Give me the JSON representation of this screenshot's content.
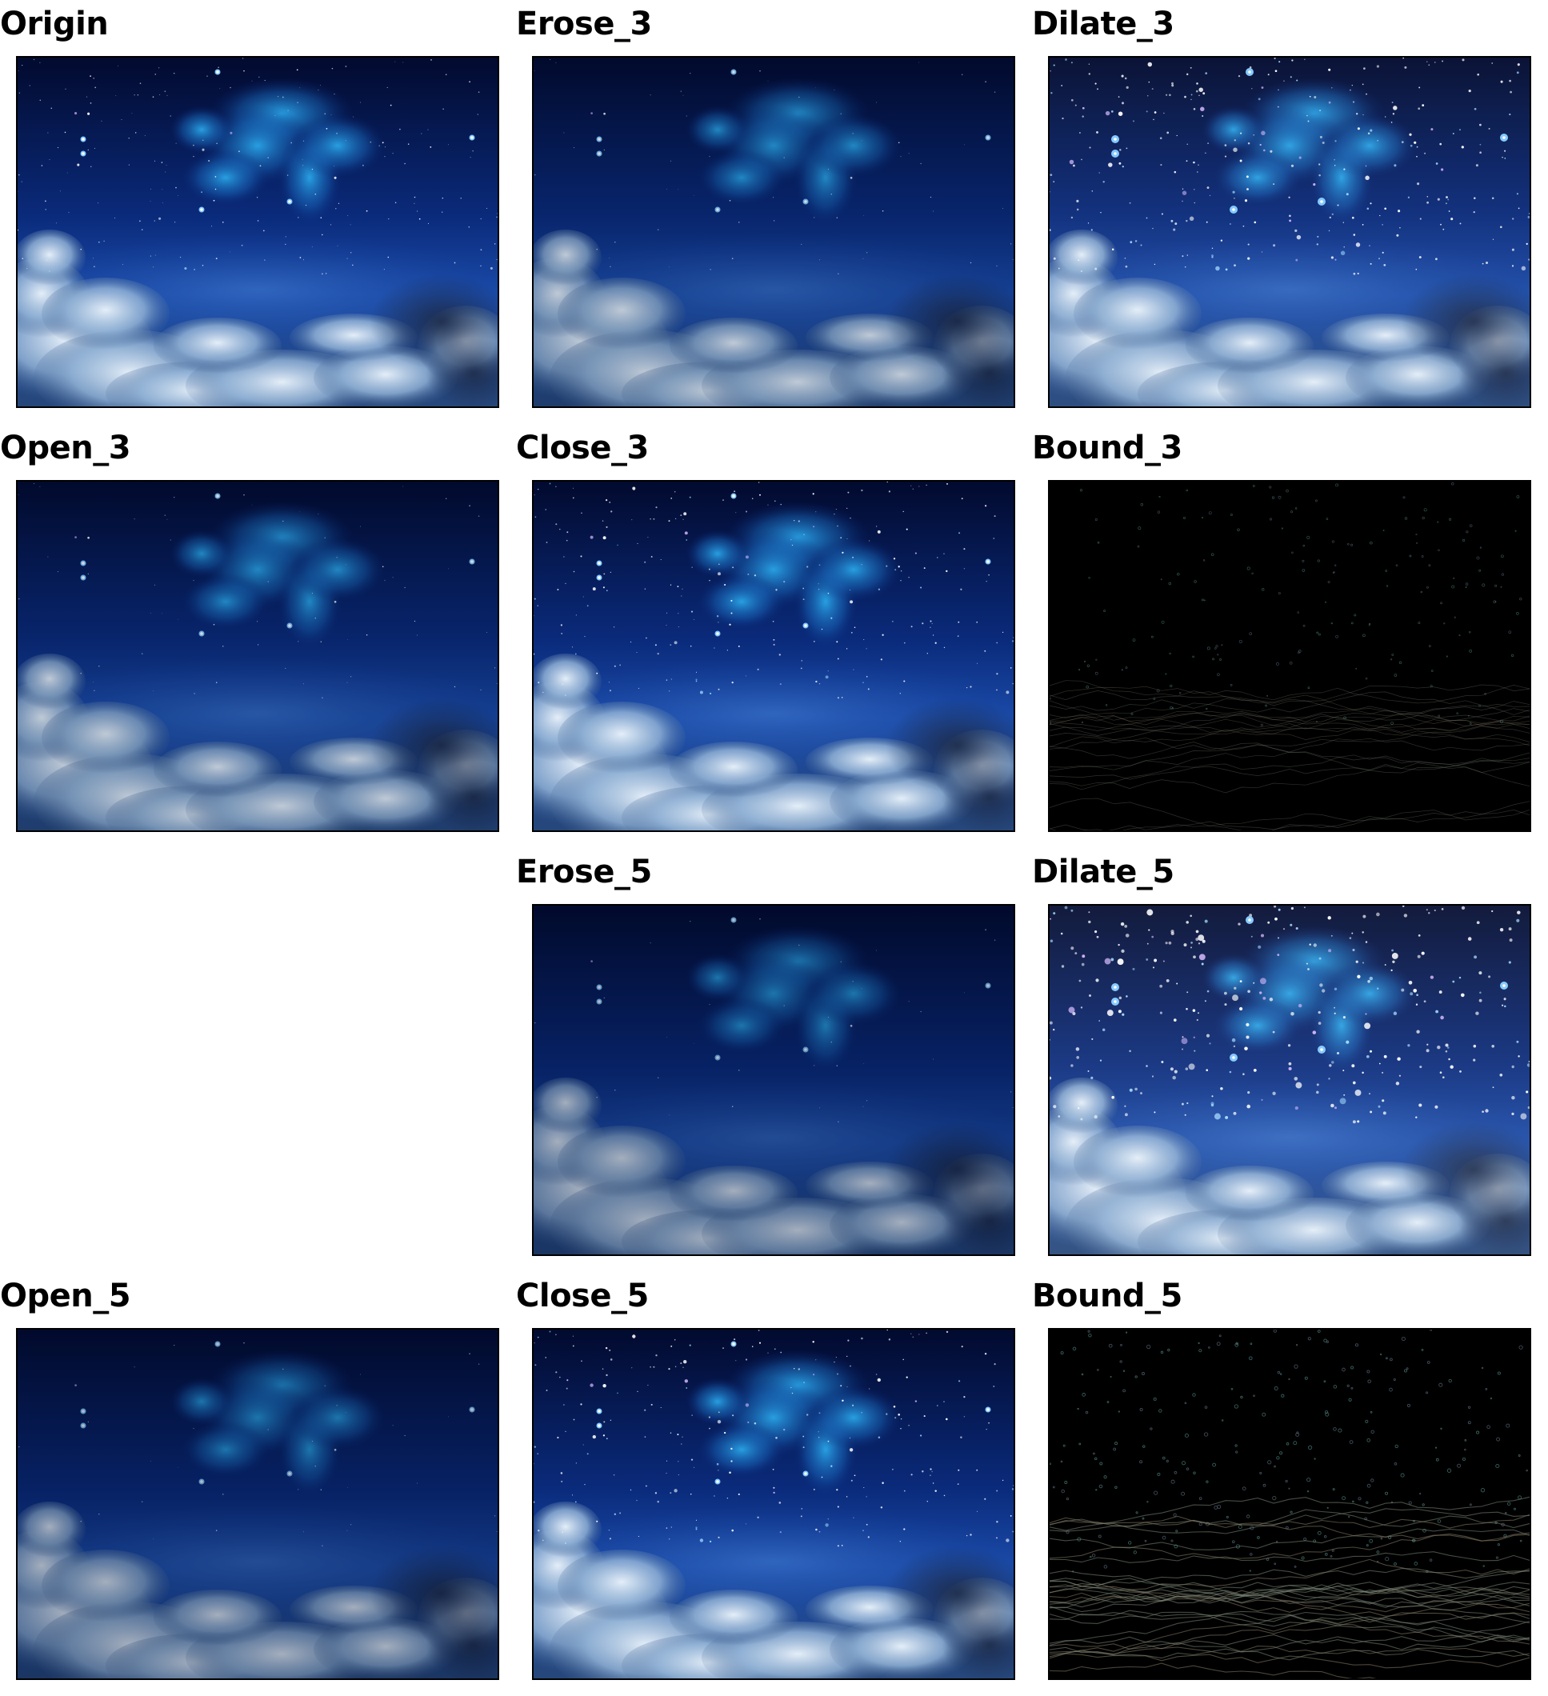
{
  "figure": {
    "background": "#ffffff",
    "panels": [
      {
        "key": "origin",
        "title": "Origin",
        "variant": "normal"
      },
      {
        "key": "erose_3",
        "title": "Erose_3",
        "variant": "eroded"
      },
      {
        "key": "dilate_3",
        "title": "Dilate_3",
        "variant": "dilated"
      },
      {
        "key": "open_3",
        "title": "Open_3",
        "variant": "opened"
      },
      {
        "key": "close_3",
        "title": "Close_3",
        "variant": "closed"
      },
      {
        "key": "bound_3",
        "title": "Bound_3",
        "variant": "boundary"
      },
      {
        "key": "empty",
        "title": "",
        "variant": "empty"
      },
      {
        "key": "erose_5",
        "title": "Erose_5",
        "variant": "eroded-strong"
      },
      {
        "key": "dilate_5",
        "title": "Dilate_5",
        "variant": "dilated-strong"
      },
      {
        "key": "open_5",
        "title": "Open_5",
        "variant": "opened-strong"
      },
      {
        "key": "close_5",
        "title": "Close_5",
        "variant": "closed-strong"
      },
      {
        "key": "bound_5",
        "title": "Bound_5",
        "variant": "boundary-strong"
      }
    ],
    "palette": {
      "sky_top": "#020a2e",
      "sky_mid": "#0a2a7a",
      "sky_low": "#1a4aa8",
      "nebula": "#2aa6e8",
      "cloud_light": "#e4eef8",
      "cloud_mid": "#8fb0d4",
      "cloud_dark": "#1d2c4c",
      "boundary_bg": "#000000",
      "boundary_edge": "#7d8a7a"
    }
  }
}
